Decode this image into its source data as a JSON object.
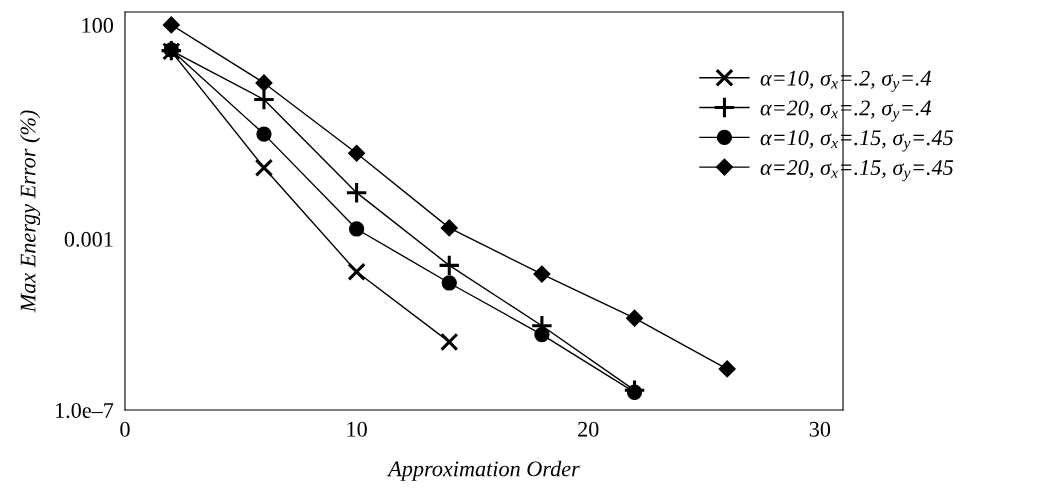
{
  "chart_data": {
    "type": "line",
    "xlabel": "Approximation Order",
    "ylabel": "Max Energy Error (%)",
    "log": "y",
    "xlim": [
      0,
      31
    ],
    "xticks": [
      0,
      10,
      20,
      30
    ],
    "ylim": [
      1e-07,
      200
    ],
    "yticks": [
      100,
      0.001,
      {
        "value": 1e-07,
        "label": "1.0e–7"
      }
    ],
    "grid": false,
    "legend": "right",
    "series": [
      {
        "name": "α=10, σ$_{x}$=.2, σ$_{y}$=.4",
        "color": "#000000",
        "marker": "cross",
        "x": [
          2,
          6,
          10,
          14
        ],
        "values": [
          24,
          0.046,
          0.00017,
          3.9e-06
        ]
      },
      {
        "name": "α=20, σ$_{x}$=.2, σ$_{y}$=.4",
        "color": "#000000",
        "marker": "plus",
        "x": [
          2,
          6,
          10,
          14,
          18,
          22
        ],
        "values": [
          25,
          1.8,
          0.012,
          0.00024,
          9.3e-06,
          2.9e-07
        ]
      },
      {
        "name": "α=10, σ$_{x}$=.15, σ$_{y}$=.45",
        "color": "#000000",
        "marker": "circle",
        "x": [
          2,
          6,
          10,
          14,
          18,
          22
        ],
        "values": [
          26,
          0.28,
          0.0017,
          9.3e-05,
          5.8e-06,
          2.6e-07
        ]
      },
      {
        "name": "α=20, σ$_{x}$=.15, σ$_{y}$=.45",
        "color": "#000000",
        "marker": "diamond",
        "x": [
          2,
          6,
          10,
          14,
          18,
          22,
          26
        ],
        "values": [
          100,
          4.4,
          0.1,
          0.0018,
          0.00015,
          1.4e-05,
          9.1e-07
        ]
      }
    ]
  }
}
